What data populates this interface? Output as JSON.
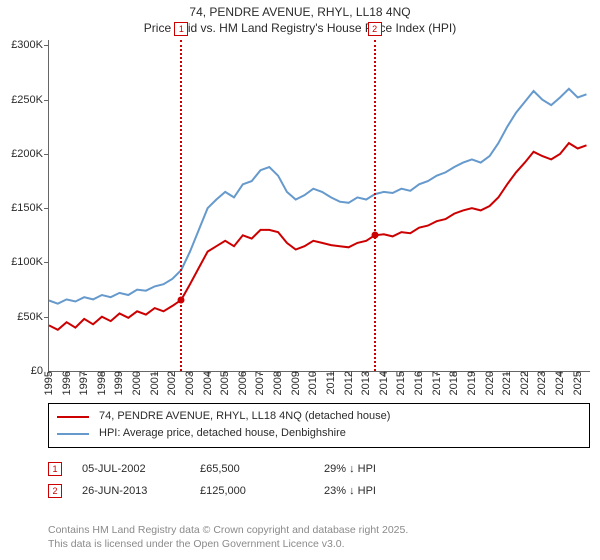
{
  "chart": {
    "type": "line",
    "title_line1": "74, PENDRE AVENUE, RHYL, LL18 4NQ",
    "title_line2": "Price paid vs. HM Land Registry's House Price Index (HPI)",
    "title_fontsize": 12,
    "background_color": "#ffffff",
    "axis_color": "#666666",
    "tick_font_size": 11,
    "x": {
      "min": 1995,
      "max": 2025.7,
      "ticks": [
        1995,
        1996,
        1997,
        1998,
        1999,
        2000,
        2001,
        2002,
        2003,
        2004,
        2005,
        2006,
        2007,
        2008,
        2009,
        2010,
        2011,
        2012,
        2013,
        2014,
        2015,
        2016,
        2017,
        2018,
        2019,
        2020,
        2021,
        2022,
        2023,
        2024,
        2025
      ]
    },
    "y": {
      "min": 0,
      "max": 305000,
      "ticks": [
        {
          "v": 0,
          "label": "£0"
        },
        {
          "v": 50000,
          "label": "£50K"
        },
        {
          "v": 100000,
          "label": "£100K"
        },
        {
          "v": 150000,
          "label": "£150K"
        },
        {
          "v": 200000,
          "label": "£200K"
        },
        {
          "v": 250000,
          "label": "£250K"
        },
        {
          "v": 300000,
          "label": "£300K"
        }
      ]
    },
    "series": [
      {
        "name": "price_paid",
        "label": "74, PENDRE AVENUE, RHYL, LL18 4NQ (detached house)",
        "color": "#cc0000",
        "line_width": 2,
        "points": [
          [
            1995.0,
            42000
          ],
          [
            1995.5,
            38000
          ],
          [
            1996.0,
            45000
          ],
          [
            1996.5,
            40000
          ],
          [
            1997.0,
            48000
          ],
          [
            1997.5,
            43000
          ],
          [
            1998.0,
            50000
          ],
          [
            1998.5,
            46000
          ],
          [
            1999.0,
            53000
          ],
          [
            1999.5,
            49000
          ],
          [
            2000.0,
            55000
          ],
          [
            2000.5,
            52000
          ],
          [
            2001.0,
            58000
          ],
          [
            2001.5,
            55000
          ],
          [
            2002.0,
            60000
          ],
          [
            2002.5,
            65500
          ],
          [
            2003.0,
            80000
          ],
          [
            2003.5,
            95000
          ],
          [
            2004.0,
            110000
          ],
          [
            2004.5,
            115000
          ],
          [
            2005.0,
            120000
          ],
          [
            2005.5,
            115000
          ],
          [
            2006.0,
            125000
          ],
          [
            2006.5,
            122000
          ],
          [
            2007.0,
            130000
          ],
          [
            2007.5,
            130000
          ],
          [
            2008.0,
            128000
          ],
          [
            2008.5,
            118000
          ],
          [
            2009.0,
            112000
          ],
          [
            2009.5,
            115000
          ],
          [
            2010.0,
            120000
          ],
          [
            2010.5,
            118000
          ],
          [
            2011.0,
            116000
          ],
          [
            2011.5,
            115000
          ],
          [
            2012.0,
            114000
          ],
          [
            2012.5,
            118000
          ],
          [
            2013.0,
            120000
          ],
          [
            2013.48,
            125000
          ],
          [
            2014.0,
            126000
          ],
          [
            2014.5,
            124000
          ],
          [
            2015.0,
            128000
          ],
          [
            2015.5,
            127000
          ],
          [
            2016.0,
            132000
          ],
          [
            2016.5,
            134000
          ],
          [
            2017.0,
            138000
          ],
          [
            2017.5,
            140000
          ],
          [
            2018.0,
            145000
          ],
          [
            2018.5,
            148000
          ],
          [
            2019.0,
            150000
          ],
          [
            2019.5,
            148000
          ],
          [
            2020.0,
            152000
          ],
          [
            2020.5,
            160000
          ],
          [
            2021.0,
            172000
          ],
          [
            2021.5,
            183000
          ],
          [
            2022.0,
            192000
          ],
          [
            2022.5,
            202000
          ],
          [
            2023.0,
            198000
          ],
          [
            2023.5,
            195000
          ],
          [
            2024.0,
            200000
          ],
          [
            2024.5,
            210000
          ],
          [
            2025.0,
            205000
          ],
          [
            2025.5,
            208000
          ]
        ]
      },
      {
        "name": "hpi",
        "label": "HPI: Average price, detached house, Denbighshire",
        "color": "#6699cc",
        "line_width": 2,
        "points": [
          [
            1995.0,
            65000
          ],
          [
            1995.5,
            62000
          ],
          [
            1996.0,
            66000
          ],
          [
            1996.5,
            64000
          ],
          [
            1997.0,
            68000
          ],
          [
            1997.5,
            66000
          ],
          [
            1998.0,
            70000
          ],
          [
            1998.5,
            68000
          ],
          [
            1999.0,
            72000
          ],
          [
            1999.5,
            70000
          ],
          [
            2000.0,
            75000
          ],
          [
            2000.5,
            74000
          ],
          [
            2001.0,
            78000
          ],
          [
            2001.5,
            80000
          ],
          [
            2002.0,
            85000
          ],
          [
            2002.5,
            93000
          ],
          [
            2003.0,
            110000
          ],
          [
            2003.5,
            130000
          ],
          [
            2004.0,
            150000
          ],
          [
            2004.5,
            158000
          ],
          [
            2005.0,
            165000
          ],
          [
            2005.5,
            160000
          ],
          [
            2006.0,
            172000
          ],
          [
            2006.5,
            175000
          ],
          [
            2007.0,
            185000
          ],
          [
            2007.5,
            188000
          ],
          [
            2008.0,
            180000
          ],
          [
            2008.5,
            165000
          ],
          [
            2009.0,
            158000
          ],
          [
            2009.5,
            162000
          ],
          [
            2010.0,
            168000
          ],
          [
            2010.5,
            165000
          ],
          [
            2011.0,
            160000
          ],
          [
            2011.5,
            156000
          ],
          [
            2012.0,
            155000
          ],
          [
            2012.5,
            160000
          ],
          [
            2013.0,
            158000
          ],
          [
            2013.5,
            163000
          ],
          [
            2014.0,
            165000
          ],
          [
            2014.5,
            164000
          ],
          [
            2015.0,
            168000
          ],
          [
            2015.5,
            166000
          ],
          [
            2016.0,
            172000
          ],
          [
            2016.5,
            175000
          ],
          [
            2017.0,
            180000
          ],
          [
            2017.5,
            183000
          ],
          [
            2018.0,
            188000
          ],
          [
            2018.5,
            192000
          ],
          [
            2019.0,
            195000
          ],
          [
            2019.5,
            192000
          ],
          [
            2020.0,
            198000
          ],
          [
            2020.5,
            210000
          ],
          [
            2021.0,
            225000
          ],
          [
            2021.5,
            238000
          ],
          [
            2022.0,
            248000
          ],
          [
            2022.5,
            258000
          ],
          [
            2023.0,
            250000
          ],
          [
            2023.5,
            245000
          ],
          [
            2024.0,
            252000
          ],
          [
            2024.5,
            260000
          ],
          [
            2025.0,
            252000
          ],
          [
            2025.5,
            255000
          ]
        ]
      }
    ],
    "sales": [
      {
        "idx": "1",
        "x": 2002.51,
        "price": 65500,
        "date": "05-JUL-2002",
        "price_label": "£65,500",
        "pct_label": "29% ↓ HPI",
        "vline_color": "#cc0000",
        "marker_border": "#cc0000"
      },
      {
        "idx": "2",
        "x": 2013.48,
        "price": 125000,
        "date": "26-JUN-2013",
        "price_label": "£125,000",
        "pct_label": "23% ↓ HPI",
        "vline_color": "#cc0000",
        "marker_border": "#cc0000"
      }
    ]
  },
  "footer": {
    "line1": "Contains HM Land Registry data © Crown copyright and database right 2025.",
    "line2": "This data is licensed under the Open Government Licence v3.0.",
    "color": "#8a8a8a"
  }
}
